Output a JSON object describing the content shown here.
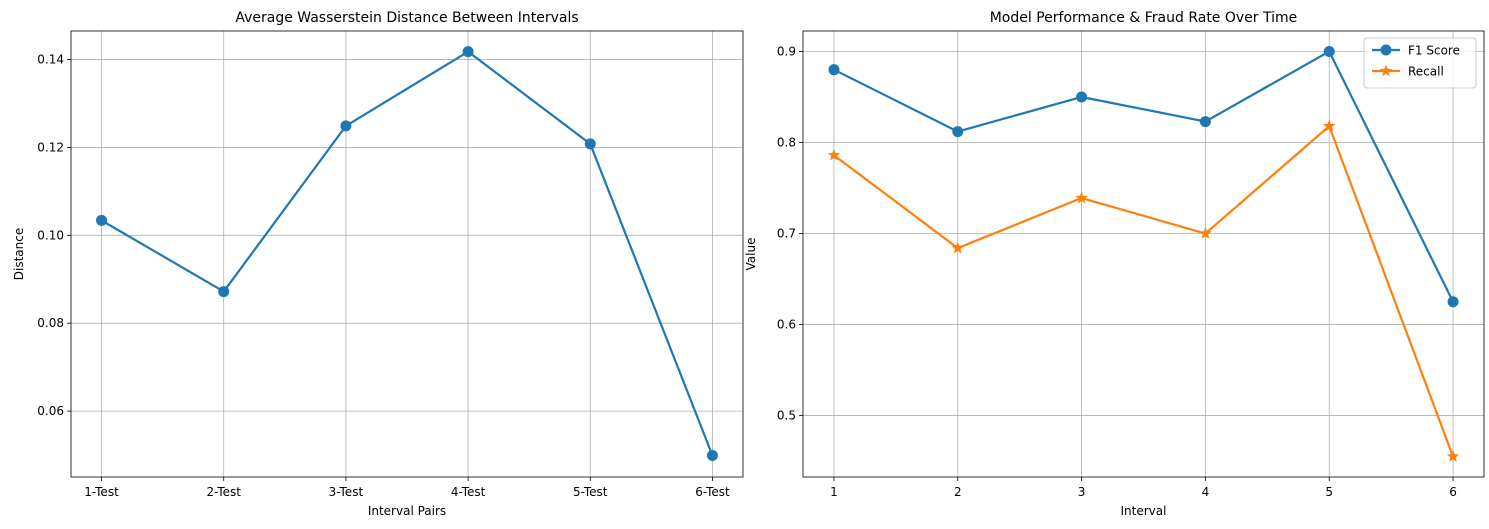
{
  "chart_data": [
    {
      "type": "line",
      "title": "Average Wasserstein Distance Between Intervals",
      "xlabel": "Interval Pairs",
      "ylabel": "Distance",
      "categories": [
        "1-Test",
        "2-Test",
        "3-Test",
        "4-Test",
        "5-Test",
        "6-Test"
      ],
      "series": [
        {
          "values": [
            0.1034,
            0.0872,
            0.1249,
            0.1418,
            0.1208,
            0.0499
          ],
          "color": "#1f77b4",
          "marker": "circle"
        }
      ],
      "ylim": [
        0.045,
        0.1465
      ],
      "yticks": [
        0.06,
        0.08,
        0.1,
        0.12,
        0.14
      ],
      "ytick_labels": [
        "0.06",
        "0.08",
        "0.10",
        "0.12",
        "0.14"
      ],
      "grid": true
    },
    {
      "type": "line",
      "title": "Model Performance & Fraud Rate Over Time",
      "xlabel": "Interval",
      "ylabel": "Value",
      "categories": [
        "1",
        "2",
        "3",
        "4",
        "5",
        "6"
      ],
      "series": [
        {
          "name": "F1 Score",
          "values": [
            0.88,
            0.812,
            0.85,
            0.823,
            0.9,
            0.625
          ],
          "color": "#1f77b4",
          "marker": "circle"
        },
        {
          "name": "Recall",
          "values": [
            0.786,
            0.684,
            0.739,
            0.7,
            0.818,
            0.455
          ],
          "color": "#ff7f0e",
          "marker": "star"
        }
      ],
      "ylim": [
        0.4325,
        0.9225
      ],
      "yticks": [
        0.5,
        0.6,
        0.7,
        0.8,
        0.9
      ],
      "ytick_labels": [
        "0.5",
        "0.6",
        "0.7",
        "0.8",
        "0.9"
      ],
      "grid": true,
      "legend": "top-right"
    }
  ]
}
